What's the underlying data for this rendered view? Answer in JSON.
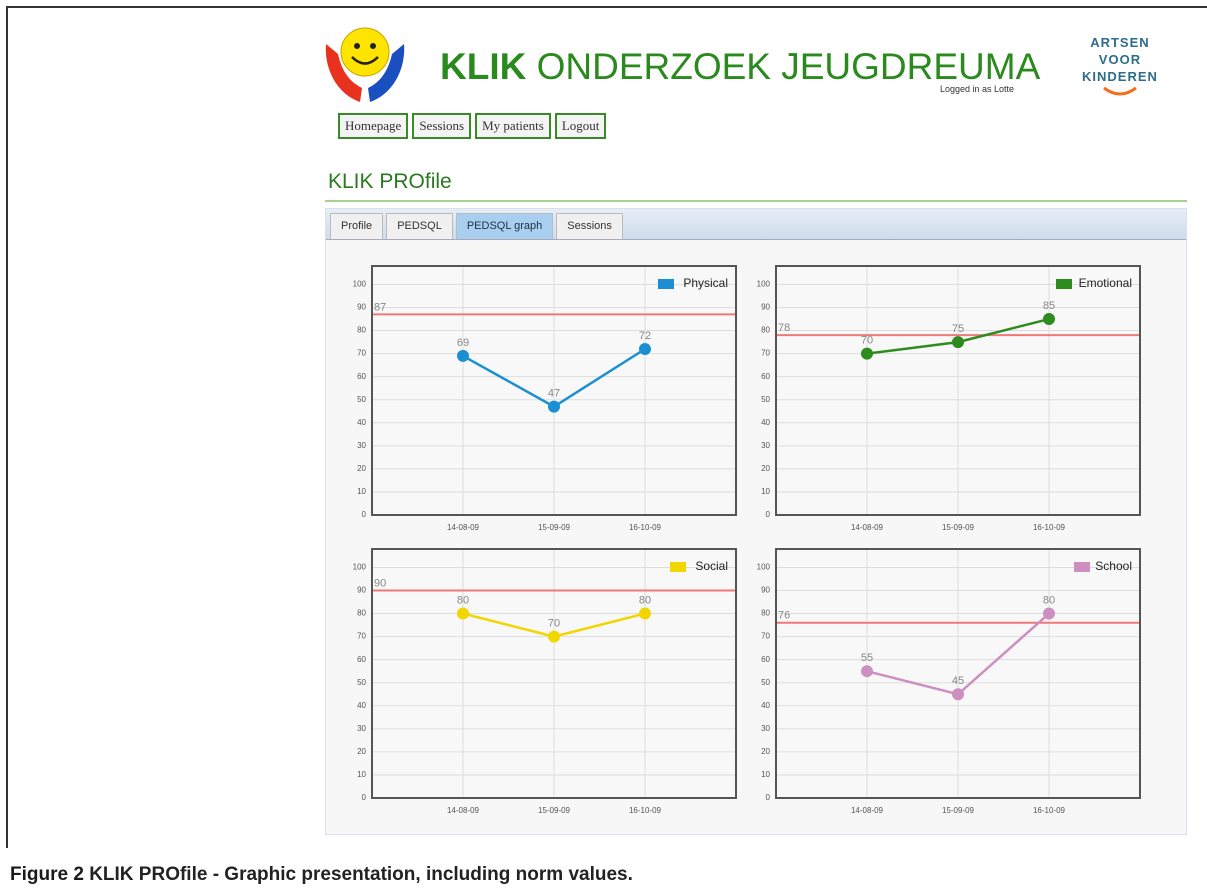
{
  "header": {
    "title_bold": "KLIK",
    "title_rest": "ONDERZOEK JEUGDREUMA",
    "logged_in": "Logged in as Lotte",
    "partner": [
      "ARTSEN",
      "VOOR",
      "KINDEREN"
    ]
  },
  "nav": [
    "Homepage",
    "Sessions",
    "My patients",
    "Logout"
  ],
  "page_title": "KLIK PROfile",
  "tabs": [
    "Profile",
    "PEDSQL",
    "PEDSQL graph",
    "Sessions"
  ],
  "active_tab": 2,
  "chart_data": [
    {
      "type": "line",
      "categories": [
        "14-08-09",
        "15-09-09",
        "16-10-09"
      ],
      "series": [
        {
          "name": "Physical",
          "color": "#1b8fd2",
          "values": [
            69,
            47,
            72
          ]
        }
      ],
      "norm": 87,
      "norm_color": "#f07878",
      "ylim": [
        0,
        108
      ],
      "yticks": [
        0,
        10,
        20,
        30,
        40,
        50,
        60,
        70,
        80,
        90,
        100
      ],
      "grid": true,
      "legend": "top-right"
    },
    {
      "type": "line",
      "categories": [
        "14-08-09",
        "15-09-09",
        "16-10-09"
      ],
      "series": [
        {
          "name": "Emotional",
          "color": "#2e8b1e",
          "values": [
            70,
            75,
            85
          ]
        }
      ],
      "norm": 78,
      "norm_color": "#f07878",
      "ylim": [
        0,
        108
      ],
      "yticks": [
        0,
        10,
        20,
        30,
        40,
        50,
        60,
        70,
        80,
        90,
        100
      ],
      "grid": true,
      "legend": "top-right"
    },
    {
      "type": "line",
      "categories": [
        "14-08-09",
        "15-09-09",
        "16-10-09"
      ],
      "series": [
        {
          "name": "Social",
          "color": "#f2d600",
          "values": [
            80,
            70,
            80
          ]
        }
      ],
      "norm": 90,
      "norm_color": "#f07878",
      "ylim": [
        0,
        108
      ],
      "yticks": [
        0,
        10,
        20,
        30,
        40,
        50,
        60,
        70,
        80,
        90,
        100
      ],
      "grid": true,
      "legend": "top-right"
    },
    {
      "type": "line",
      "categories": [
        "14-08-09",
        "15-09-09",
        "16-10-09"
      ],
      "series": [
        {
          "name": "School",
          "color": "#cc8fbf",
          "values": [
            55,
            45,
            80
          ]
        }
      ],
      "norm": 76,
      "norm_color": "#f07878",
      "ylim": [
        0,
        108
      ],
      "yticks": [
        0,
        10,
        20,
        30,
        40,
        50,
        60,
        70,
        80,
        90,
        100
      ],
      "grid": true,
      "legend": "top-right"
    }
  ],
  "caption": {
    "label": "Figure 2",
    "text": "KLIK PROfile - Graphic presentation, including norm values."
  }
}
